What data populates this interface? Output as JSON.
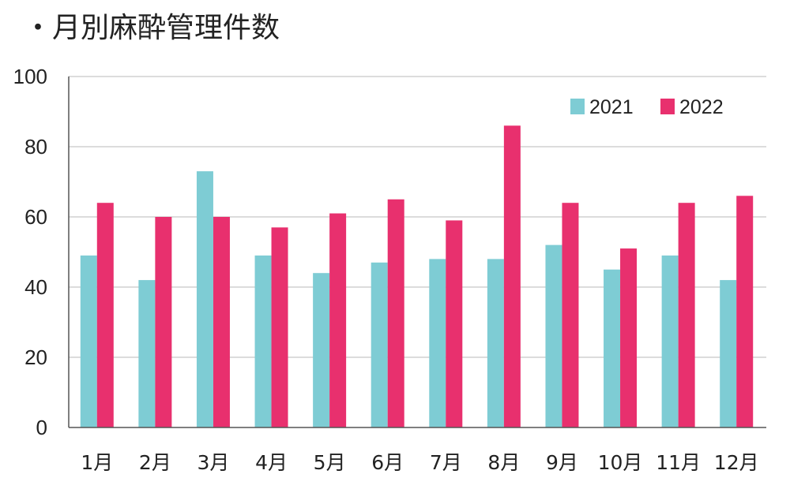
{
  "title": "・月別麻酔管理件数",
  "chart_data": {
    "type": "bar",
    "categories": [
      "1月",
      "2月",
      "3月",
      "4月",
      "5月",
      "6月",
      "7月",
      "8月",
      "9月",
      "10月",
      "11月",
      "12月"
    ],
    "series": [
      {
        "name": "2021",
        "color": "#7ECCD4",
        "values": [
          49,
          42,
          73,
          49,
          44,
          47,
          48,
          48,
          52,
          45,
          49,
          42
        ]
      },
      {
        "name": "2022",
        "color": "#E8306E",
        "values": [
          64,
          60,
          60,
          57,
          61,
          65,
          59,
          86,
          64,
          51,
          64,
          66
        ]
      }
    ],
    "title": "・月別麻酔管理件数",
    "xlabel": "",
    "ylabel": "",
    "ylim": [
      0,
      100
    ],
    "yticks": [
      0,
      20,
      40,
      60,
      80,
      100
    ],
    "grid": true,
    "legend_position": "top-right"
  }
}
